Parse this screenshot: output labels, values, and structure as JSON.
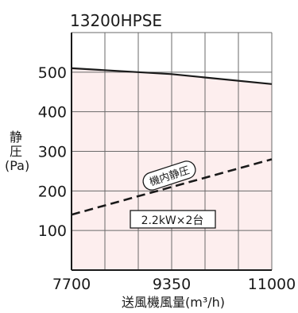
{
  "chart_data": {
    "type": "line",
    "title": "13200HPSE",
    "ylabel_lines": [
      "静",
      "圧",
      "(Pa)"
    ],
    "xlabel": "送風機風量(m³/h)",
    "xlim": [
      7700,
      11000
    ],
    "ylim": [
      0,
      600
    ],
    "x_ticks": [
      "7700",
      "9350",
      "11000"
    ],
    "y_ticks": [
      "100",
      "200",
      "300",
      "400",
      "500"
    ],
    "y_tick_values": [
      100,
      200,
      300,
      400,
      500
    ],
    "grid": true,
    "shaded_region": "below fan curve",
    "colors": {
      "fill": "#fdeeee",
      "grid": "#6a6a6a",
      "line": "#1a1a1a"
    },
    "series": [
      {
        "style": "solid",
        "x": [
          7700,
          9350,
          11000
        ],
        "y": [
          510,
          495,
          470
        ]
      },
      {
        "style": "dashed",
        "x": [
          7700,
          11000
        ],
        "y": [
          140,
          280
        ]
      }
    ],
    "annotations": [
      {
        "text": "機内静圧",
        "boxed": "rounded"
      },
      {
        "text": "2.2kW×2台",
        "boxed": "square"
      }
    ]
  }
}
